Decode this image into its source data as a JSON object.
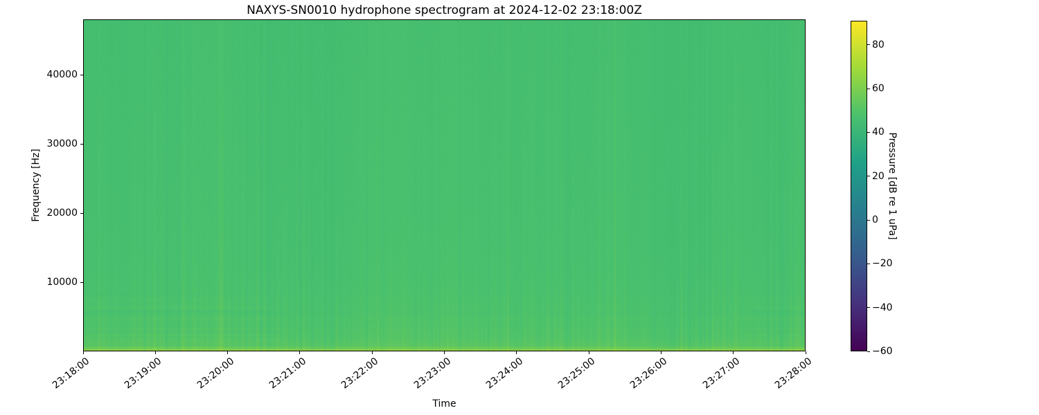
{
  "chart_data": {
    "type": "heatmap",
    "subtype": "spectrogram",
    "title": "NAXYS-SN0010 hydrophone spectrogram at 2024-12-02 23:18:00Z",
    "xlabel": "Time",
    "ylabel": "Frequency [Hz]",
    "x_ticks": [
      "23:18:00",
      "23:19:00",
      "23:20:00",
      "23:21:00",
      "23:22:00",
      "23:23:00",
      "23:24:00",
      "23:25:00",
      "23:26:00",
      "23:27:00",
      "23:28:00"
    ],
    "x_tick_rotation_deg": 38,
    "y_ticks": [
      10000,
      20000,
      30000,
      40000
    ],
    "y_tick_labels": [
      "10000",
      "20000",
      "30000",
      "40000"
    ],
    "ylim": [
      0,
      48000
    ],
    "grid": false,
    "legend": "none",
    "colormap": "viridis",
    "colormap_stops": [
      "#440154",
      "#46327e",
      "#365c8d",
      "#277f8e",
      "#1fa187",
      "#4ac16d",
      "#a0da39",
      "#fde725"
    ],
    "colorbar": {
      "label": "Pressure [dB re 1 uPa]",
      "vmin": -60,
      "vmax": 91,
      "ticks": [
        80,
        60,
        40,
        20,
        0,
        -20,
        -40,
        -60
      ],
      "tick_labels": [
        "80",
        "60",
        "40",
        "20",
        "0",
        "−20",
        "−40",
        "−60"
      ]
    },
    "field": {
      "description": "Broadband ambient noise around 47 dB (mid green) across 0-48 kHz for the full 10 minutes, with faint vertical streaking, slightly elevated levels below ~8 kHz, faint horizontal banding below ~9 kHz (strongest in first ~2.5 min and near the right edge), and a bright yellow-green band of ~65-71 dB below ~600 Hz along the bottom edge",
      "base_db": 47,
      "vertical_streak_db": 2.2,
      "slow_column_variation_db": 0.9,
      "bright_column_db_max": 3.8,
      "low_freq_boost_db": 20,
      "low_freq_scale_hz": 300,
      "mid_low_boost_db": 4,
      "mid_low_scale_hz": 5200,
      "horizontal_streak_db": 2.2,
      "horizontal_streak_max_hz": 9000,
      "high_freq_tilt_db": -1.2,
      "pixel_noise_db": 0.45
    }
  }
}
